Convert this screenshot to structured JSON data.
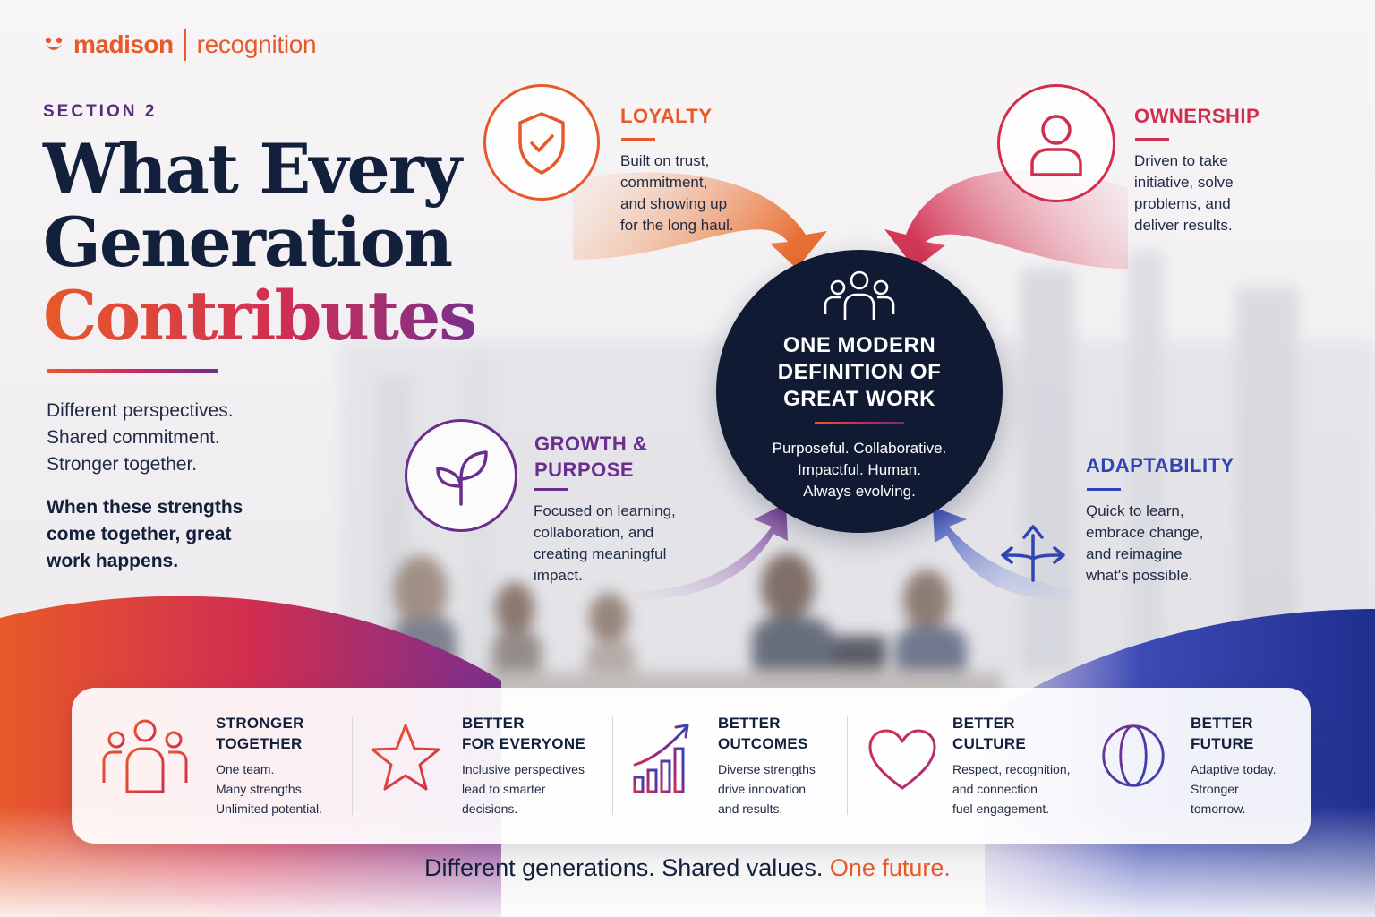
{
  "brand": {
    "name": "madison",
    "product": "recognition",
    "color": "#e8592a",
    "mark_icon": "smile-logo-icon"
  },
  "section_label": "SECTION 2",
  "headline": {
    "line1": "What Every",
    "line2": "Generation",
    "line3": "Contributes"
  },
  "intro": {
    "line1": "Different perspectives.",
    "line2": "Shared commitment.",
    "line3": "Stronger together.",
    "bold_line1": "When these strengths",
    "bold_line2": "come together, great",
    "bold_line3": "work happens."
  },
  "hub": {
    "icon": "people-group-icon",
    "title_line1": "ONE MODERN",
    "title_line2": "DEFINITION OF",
    "title_line3": "GREAT WORK",
    "tagline_line1": "Purposeful. Collaborative.",
    "tagline_line2": "Impactful. Human.",
    "tagline_line3": "Always evolving."
  },
  "values": {
    "loyalty": {
      "title": "LOYALTY",
      "desc": [
        "Built on trust,",
        "commitment,",
        "and showing up",
        "for the long haul."
      ],
      "icon": "shield-check-icon",
      "color": "#e8592a"
    },
    "ownership": {
      "title": "OWNERSHIP",
      "desc": [
        "Driven to take",
        "initiative, solve",
        "problems, and",
        "deliver results."
      ],
      "icon": "person-icon",
      "color": "#d12e4f"
    },
    "growth": {
      "title_line1": "GROWTH &",
      "title_line2": "PURPOSE",
      "desc": [
        "Focused on learning,",
        "collaboration, and",
        "creating meaningful",
        "impact."
      ],
      "icon": "sprout-icon",
      "color": "#6a2e8e"
    },
    "adaptability": {
      "title": "ADAPTABILITY",
      "desc": [
        "Quick to learn,",
        "embrace change,",
        "and reimagine",
        "what's possible."
      ],
      "icon": "three-way-arrows-icon",
      "color": "#2f45b5"
    }
  },
  "benefits": [
    {
      "title_line1": "STRONGER",
      "title_line2": "TOGETHER",
      "desc": [
        "One team.",
        "Many strengths.",
        "Unlimited potential."
      ],
      "icon": "team-icon"
    },
    {
      "title_line1": "BETTER",
      "title_line2": "FOR EVERYONE",
      "desc": [
        "Inclusive perspectives",
        "lead to smarter",
        "decisions."
      ],
      "icon": "star-icon"
    },
    {
      "title_line1": "BETTER",
      "title_line2": "OUTCOMES",
      "desc": [
        "Diverse strengths",
        "drive innovation",
        "and results."
      ],
      "icon": "growth-chart-icon"
    },
    {
      "title_line1": "BETTER",
      "title_line2": "CULTURE",
      "desc": [
        "Respect, recognition,",
        "and connection",
        "fuel engagement."
      ],
      "icon": "heart-icon"
    },
    {
      "title_line1": "BETTER",
      "title_line2": "FUTURE",
      "desc": [
        "Adaptive today.",
        "Stronger",
        "tomorrow."
      ],
      "icon": "globe-icon"
    }
  ],
  "footer": {
    "text": "Different generations. Shared values.",
    "accent": "One future."
  },
  "colors": {
    "navy": "#13203b",
    "orange": "#e8592a",
    "crimson": "#d12e4f",
    "purple": "#6a2e8e",
    "blue": "#2f45b5"
  }
}
